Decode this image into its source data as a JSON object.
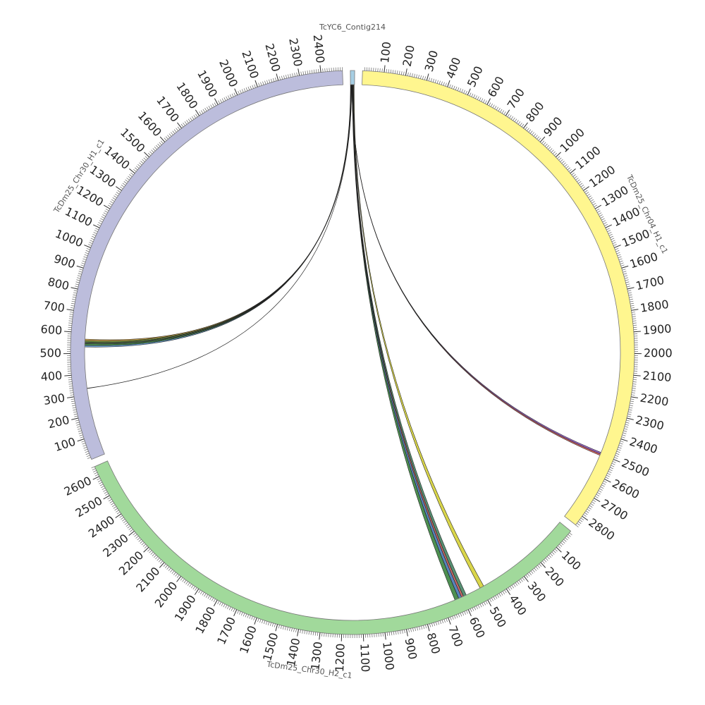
{
  "chart_data": {
    "type": "chord",
    "minor_tick_interval": 10,
    "segments": [
      {
        "name": "TcYC6_Contig214",
        "length": 20,
        "color": "#a6cee3",
        "ticks": []
      },
      {
        "name": "TcDm25_Chr04_H1_c1",
        "length": 2850,
        "color": "#fff68f",
        "ticks": [
          100,
          200,
          300,
          400,
          500,
          600,
          700,
          800,
          900,
          1000,
          1100,
          1200,
          1300,
          1400,
          1500,
          1600,
          1700,
          1800,
          1900,
          2000,
          2100,
          2200,
          2300,
          2400,
          2500,
          2600,
          2700,
          2800
        ]
      },
      {
        "name": "TcDm25_Chr30_H2_c1",
        "length": 2650,
        "color": "#a1d99b",
        "ticks": [
          100,
          200,
          300,
          400,
          500,
          600,
          700,
          800,
          900,
          1000,
          1100,
          1200,
          1300,
          1400,
          1500,
          1600,
          1700,
          1800,
          1900,
          2000,
          2100,
          2200,
          2300,
          2400,
          2500,
          2600
        ]
      },
      {
        "name": "TcDm25_Chr30_H1_c1",
        "length": 2500,
        "color": "#bcbddc",
        "ticks": [
          100,
          200,
          300,
          400,
          500,
          600,
          700,
          800,
          900,
          1000,
          1100,
          1200,
          1300,
          1400,
          1500,
          1600,
          1700,
          1800,
          1900,
          2000,
          2100,
          2200,
          2300,
          2400
        ]
      }
    ],
    "links": [
      {
        "source": "TcYC6_Contig214",
        "source_start": 0,
        "source_end": 1,
        "target": "TcDm25_Chr30_H1_c1",
        "target_start": 532,
        "target_end": 540,
        "color": "#5b9bd5"
      },
      {
        "source": "TcYC6_Contig214",
        "source_start": 1,
        "source_end": 2,
        "target": "TcDm25_Chr30_H1_c1",
        "target_start": 540,
        "target_end": 548,
        "color": "#2e7d32"
      },
      {
        "source": "TcYC6_Contig214",
        "source_start": 2,
        "source_end": 3,
        "target": "TcDm25_Chr30_H1_c1",
        "target_start": 548,
        "target_end": 556,
        "color": "#2f4f2f"
      },
      {
        "source": "TcYC6_Contig214",
        "source_start": 3,
        "source_end": 4,
        "target": "TcDm25_Chr30_H1_c1",
        "target_start": 556,
        "target_end": 563,
        "color": "#6b8e23"
      },
      {
        "source": "TcYC6_Contig214",
        "source_start": 4,
        "source_end": 5,
        "target": "TcDm25_Chr30_H1_c1",
        "target_start": 563,
        "target_end": 570,
        "color": "#d4a030"
      },
      {
        "source": "TcYC6_Contig214",
        "source_start": 5.5,
        "source_end": 5.7,
        "target": "TcDm25_Chr30_H1_c1",
        "target_start": 330,
        "target_end": 331,
        "color": "#ffffff"
      },
      {
        "source": "TcYC6_Contig214",
        "source_start": 7,
        "source_end": 7.5,
        "target": "TcDm25_Chr04_H1_c1",
        "target_start": 2492,
        "target_end": 2500,
        "color": "#8a4fbf"
      },
      {
        "source": "TcYC6_Contig214",
        "source_start": 7.5,
        "source_end": 8,
        "target": "TcDm25_Chr04_H1_c1",
        "target_start": 2500,
        "target_end": 2507,
        "color": "#d9534f"
      },
      {
        "source": "TcYC6_Contig214",
        "source_start": 9,
        "source_end": 10.5,
        "target": "TcDm25_Chr30_H2_c1",
        "target_start": 620,
        "target_end": 640,
        "color": "#2e7d32"
      },
      {
        "source": "TcYC6_Contig214",
        "source_start": 10.5,
        "source_end": 12,
        "target": "TcDm25_Chr30_H2_c1",
        "target_start": 605,
        "target_end": 620,
        "color": "#3c6fb0"
      },
      {
        "source": "TcYC6_Contig214",
        "source_start": 12,
        "source_end": 13,
        "target": "TcDm25_Chr30_H2_c1",
        "target_start": 595,
        "target_end": 605,
        "color": "#c0504d"
      },
      {
        "source": "TcYC6_Contig214",
        "source_start": 13,
        "source_end": 14.5,
        "target": "TcDm25_Chr30_H2_c1",
        "target_start": 580,
        "target_end": 595,
        "color": "#3a7d5a"
      },
      {
        "source": "TcYC6_Contig214",
        "source_start": 15.5,
        "source_end": 18,
        "target": "TcDm25_Chr30_H2_c1",
        "target_start": 485,
        "target_end": 505,
        "color": "#d4cf2a"
      }
    ]
  }
}
